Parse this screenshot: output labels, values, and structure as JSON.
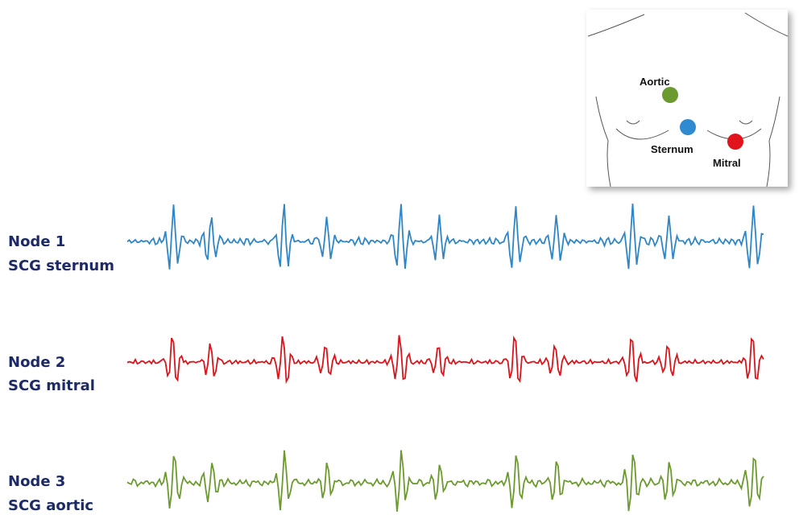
{
  "nodes": [
    {
      "node": "Node 1",
      "sensor": "SCG sternum"
    },
    {
      "node": "Node 2",
      "sensor": "SCG mitral"
    },
    {
      "node": "Node 3",
      "sensor": "SCG aortic"
    }
  ],
  "inset": {
    "aortic": "Aortic",
    "sternum": "Sternum",
    "mitral": "Mitral"
  }
}
